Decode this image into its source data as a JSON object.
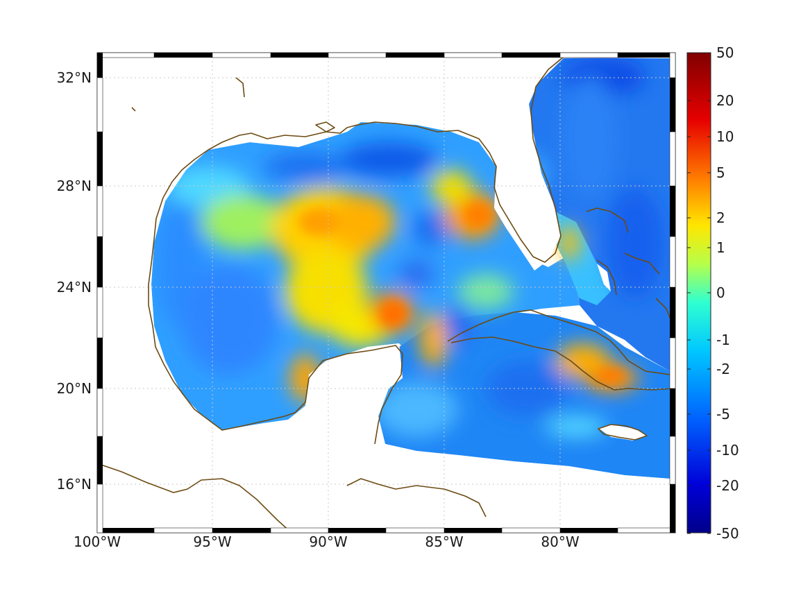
{
  "map": {
    "region": "Gulf of Mexico and western Caribbean",
    "projection": "equirectangular",
    "lon_range": [
      -100,
      -75
    ],
    "lat_range": [
      14.5,
      33
    ],
    "longitude_ticks": [
      {
        "value": -100,
        "label": "100°W"
      },
      {
        "value": -95,
        "label": "95°W"
      },
      {
        "value": -90,
        "label": "90°W"
      },
      {
        "value": -85,
        "label": "85°W"
      },
      {
        "value": -80,
        "label": "80°W"
      }
    ],
    "latitude_ticks": [
      {
        "value": 16,
        "label": "16°N"
      },
      {
        "value": 20,
        "label": "20°N"
      },
      {
        "value": 24,
        "label": "24°N"
      },
      {
        "value": 28,
        "label": "28°N"
      },
      {
        "value": 32,
        "label": "32°N"
      }
    ],
    "grid": "dotted",
    "frame": "black-and-white checkered border",
    "coastline_color": "#6b4a12",
    "colormap": "jet",
    "colorbar": {
      "placement": "right",
      "ticks": [
        "50",
        "20",
        "10",
        "5",
        "2",
        "1",
        "0",
        "-1",
        "-2",
        "-5",
        "-10",
        "-20",
        "-50"
      ],
      "range": [
        -50,
        50
      ]
    }
  }
}
